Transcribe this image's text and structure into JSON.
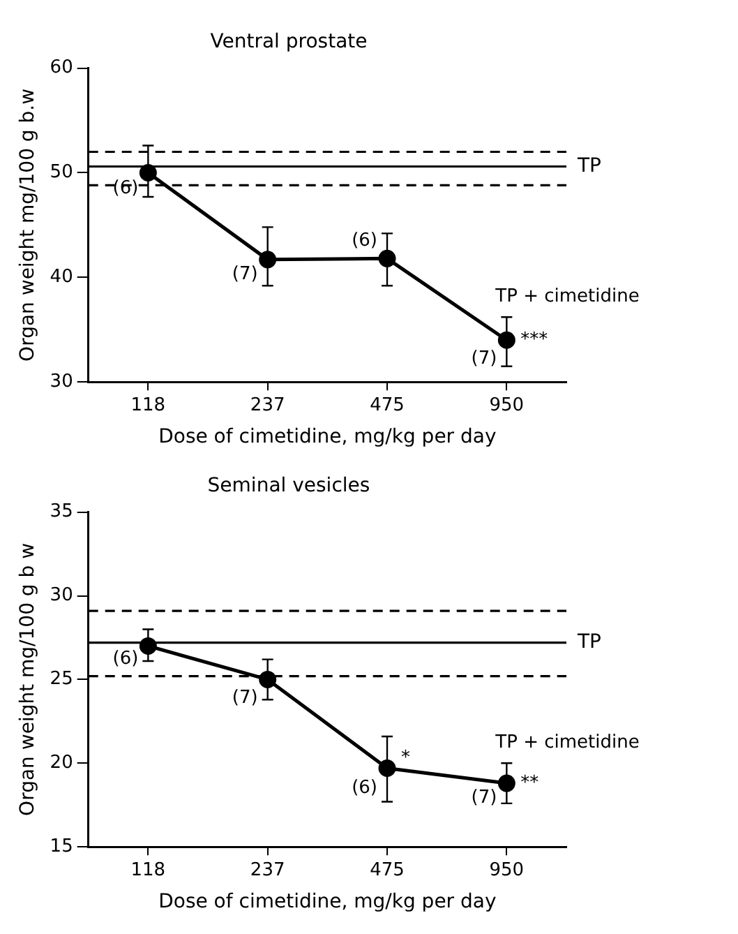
{
  "chart_data": [
    {
      "type": "line",
      "title": "Ventral prostate",
      "xlabel": "Dose of cimetidine, mg/kg per day",
      "ylabel": "Organ weight mg/100 g b.w",
      "categories": [
        "118",
        "237",
        "475",
        "950"
      ],
      "series": [
        {
          "name": "TP + cimetidine",
          "color": "#000000",
          "values": [
            50,
            41.7,
            41.8,
            34
          ],
          "errors": [
            [
              47.7,
              52.6
            ],
            [
              39.2,
              44.8
            ],
            [
              39.2,
              44.2
            ],
            [
              31.5,
              36.2
            ]
          ]
        }
      ],
      "ylim": [
        30,
        60
      ],
      "yticks": [
        30,
        40,
        50,
        60
      ],
      "marker": "circle",
      "line_style": "solid",
      "ref_lines": [
        {
          "axis": "y",
          "value": 50.6,
          "label": "TP",
          "color": "#000000",
          "line_style": "solid"
        },
        {
          "axis": "y",
          "value": 52,
          "label": null,
          "color": "#000000",
          "line_style": "dashed"
        },
        {
          "axis": "y",
          "value": 48.8,
          "label": null,
          "color": "#000000",
          "line_style": "dashed"
        }
      ],
      "annotations": [
        {
          "text": "(6)",
          "x": "118",
          "y": 48.5
        },
        {
          "text": "(7)",
          "x": "237",
          "y": 40.3
        },
        {
          "text": "(6)",
          "x": "475",
          "y": 43.5
        },
        {
          "text": "(7)",
          "x": "950",
          "y": 32.2
        },
        {
          "text": "***",
          "x": "950",
          "y": 34
        }
      ]
    },
    {
      "type": "line",
      "title": "Seminal vesicles",
      "xlabel": "Dose of cimetidine, mg/kg per day",
      "ylabel": "Organ weight mg/100 g b w",
      "categories": [
        "118",
        "237",
        "475",
        "950"
      ],
      "series": [
        {
          "name": "TP + cimetidine",
          "color": "#000000",
          "values": [
            27,
            25,
            19.7,
            18.8
          ],
          "errors": [
            [
              26.1,
              28
            ],
            [
              23.8,
              26.2
            ],
            [
              17.7,
              21.6
            ],
            [
              17.6,
              20
            ]
          ]
        }
      ],
      "ylim": [
        15,
        35
      ],
      "yticks": [
        15,
        20,
        25,
        30,
        35
      ],
      "marker": "circle",
      "line_style": "solid",
      "ref_lines": [
        {
          "axis": "y",
          "value": 27.2,
          "label": "TP",
          "color": "#000000",
          "line_style": "solid"
        },
        {
          "axis": "y",
          "value": 29.1,
          "label": null,
          "color": "#000000",
          "line_style": "dashed"
        },
        {
          "axis": "y",
          "value": 25.2,
          "label": null,
          "color": "#000000",
          "line_style": "dashed"
        }
      ],
      "annotations": [
        {
          "text": "(6)",
          "x": "118",
          "y": 26.2
        },
        {
          "text": "(7)",
          "x": "237",
          "y": 23.9
        },
        {
          "text": "(6)",
          "x": "475",
          "y": 18.5
        },
        {
          "text": "*",
          "x": "475",
          "y": 20.3
        },
        {
          "text": "(7)",
          "x": "950",
          "y": 17.9
        },
        {
          "text": "**",
          "x": "950",
          "y": 18.8
        }
      ]
    }
  ]
}
